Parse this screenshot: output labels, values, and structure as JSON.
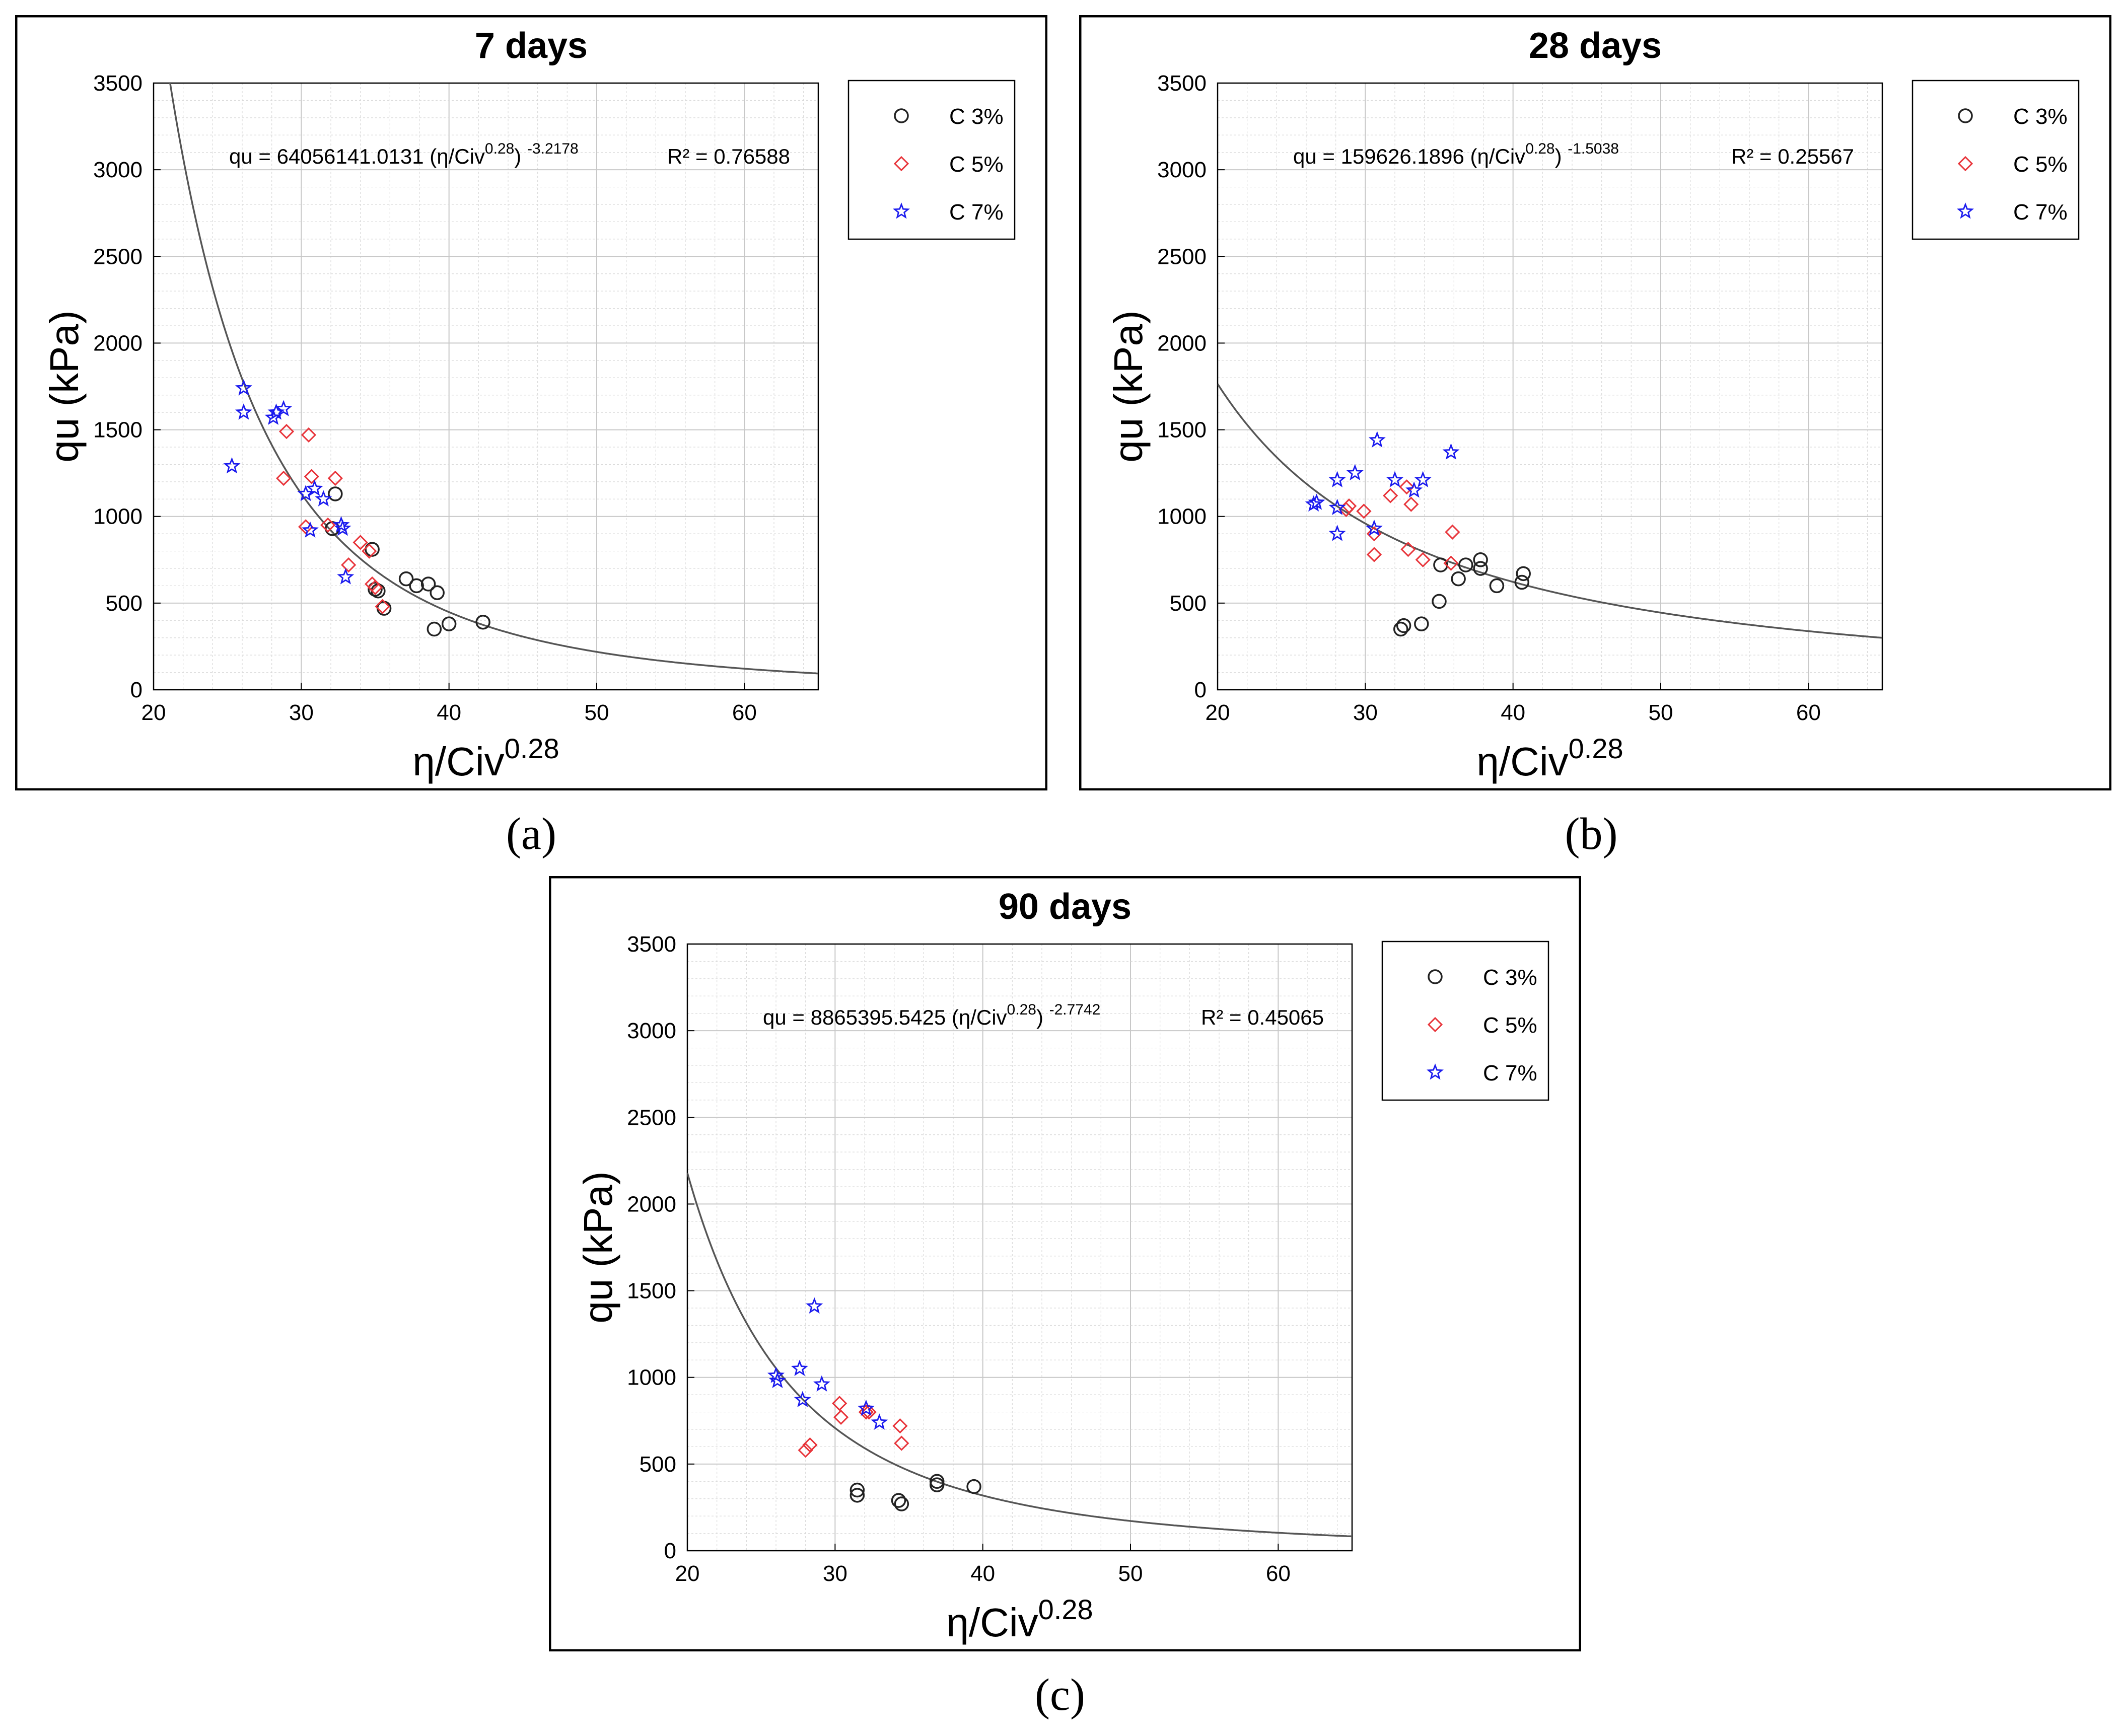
{
  "colors": {
    "c3": "#222222",
    "c5": "#e8343a",
    "c7": "#1a1aee",
    "fit": "#555555",
    "grid": "#d9d9d9",
    "frame": "#000000"
  },
  "chart_data": [
    {
      "type": "scatter",
      "title": "7 days",
      "caption": "(a)",
      "xlabel_base": "η/Civ",
      "xlabel_exp": "0.28",
      "ylabel": "qu (kPa)",
      "xlim": [
        20,
        65
      ],
      "ylim": [
        0,
        3500
      ],
      "xticks": [
        20,
        30,
        40,
        50,
        60
      ],
      "yticks": [
        0,
        500,
        1000,
        1500,
        2000,
        2500,
        3000,
        3500
      ],
      "equation": {
        "prefix": "qu = 64056141.0131 (η/Civ",
        "exp_inner": "0.28",
        "close": ")",
        "exp_outer": "-3.2178",
        "r2_label": "R² =",
        "r2_value": "0.76588"
      },
      "fit": {
        "a": 64056141.0131,
        "b": -3.2178
      },
      "series": [
        {
          "name": "C 3%",
          "marker": "circle",
          "points": [
            [
              32.1,
              930
            ],
            [
              32.3,
              1130
            ],
            [
              34.8,
              810
            ],
            [
              35.0,
              580
            ],
            [
              35.2,
              570
            ],
            [
              35.6,
              470
            ],
            [
              37.1,
              640
            ],
            [
              37.8,
              600
            ],
            [
              38.6,
              610
            ],
            [
              39.0,
              350
            ],
            [
              39.2,
              560
            ],
            [
              40.0,
              380
            ],
            [
              42.3,
              390
            ]
          ]
        },
        {
          "name": "C 5%",
          "marker": "diamond",
          "points": [
            [
              28.8,
              1220
            ],
            [
              29.0,
              1490
            ],
            [
              30.3,
              940
            ],
            [
              30.5,
              1470
            ],
            [
              30.7,
              1230
            ],
            [
              31.8,
              950
            ],
            [
              32.3,
              1220
            ],
            [
              33.2,
              720
            ],
            [
              34.0,
              850
            ],
            [
              34.6,
              800
            ],
            [
              34.8,
              610
            ],
            [
              35.0,
              590
            ],
            [
              35.5,
              480
            ]
          ]
        },
        {
          "name": "C 7%",
          "marker": "star",
          "points": [
            [
              25.3,
              1290
            ],
            [
              26.1,
              1740
            ],
            [
              26.1,
              1600
            ],
            [
              28.1,
              1570
            ],
            [
              28.3,
              1600
            ],
            [
              28.8,
              1620
            ],
            [
              30.3,
              1130
            ],
            [
              30.6,
              920
            ],
            [
              30.9,
              1160
            ],
            [
              31.5,
              1100
            ],
            [
              32.7,
              950
            ],
            [
              32.8,
              930
            ],
            [
              33.0,
              650
            ]
          ]
        }
      ]
    },
    {
      "type": "scatter",
      "title": "28 days",
      "caption": "(b)",
      "xlabel_base": "η/Civ",
      "xlabel_exp": "0.28",
      "ylabel": "qu (kPa)",
      "xlim": [
        20,
        65
      ],
      "ylim": [
        0,
        3500
      ],
      "xticks": [
        20,
        30,
        40,
        50,
        60
      ],
      "yticks": [
        0,
        500,
        1000,
        1500,
        2000,
        2500,
        3000,
        3500
      ],
      "equation": {
        "prefix": "qu = 159626.1896 (η/Civ",
        "exp_inner": "0.28",
        "close": ")",
        "exp_outer": "-1.5038",
        "r2_label": "R² =",
        "r2_value": "0.25567"
      },
      "fit": {
        "a": 159626.1896,
        "b": -1.5038
      },
      "series": [
        {
          "name": "C 3%",
          "marker": "circle",
          "points": [
            [
              32.4,
              350
            ],
            [
              32.6,
              370
            ],
            [
              33.8,
              380
            ],
            [
              35.0,
              510
            ],
            [
              35.1,
              720
            ],
            [
              36.3,
              640
            ],
            [
              36.8,
              720
            ],
            [
              37.8,
              750
            ],
            [
              37.8,
              700
            ],
            [
              38.9,
              600
            ],
            [
              40.6,
              620
            ],
            [
              40.7,
              670
            ]
          ]
        },
        {
          "name": "C 5%",
          "marker": "diamond",
          "points": [
            [
              28.7,
              1040
            ],
            [
              28.9,
              1060
            ],
            [
              29.9,
              1030
            ],
            [
              30.6,
              900
            ],
            [
              30.6,
              780
            ],
            [
              31.7,
              1120
            ],
            [
              32.8,
              1170
            ],
            [
              32.9,
              810
            ],
            [
              33.1,
              1070
            ],
            [
              33.9,
              750
            ],
            [
              35.8,
              730
            ],
            [
              35.9,
              910
            ]
          ]
        },
        {
          "name": "C 7%",
          "marker": "star",
          "points": [
            [
              26.5,
              1070
            ],
            [
              26.7,
              1080
            ],
            [
              28.1,
              1210
            ],
            [
              28.1,
              1050
            ],
            [
              28.1,
              900
            ],
            [
              29.3,
              1250
            ],
            [
              30.6,
              930
            ],
            [
              30.8,
              1440
            ],
            [
              32.0,
              1210
            ],
            [
              33.3,
              1150
            ],
            [
              33.9,
              1210
            ],
            [
              35.8,
              1370
            ]
          ]
        }
      ]
    },
    {
      "type": "scatter",
      "title": "90 days",
      "caption": "(c)",
      "xlabel_base": "η/Civ",
      "xlabel_exp": "0.28",
      "ylabel": "qu (kPa)",
      "xlim": [
        20,
        65
      ],
      "ylim": [
        0,
        3500
      ],
      "xticks": [
        20,
        30,
        40,
        50,
        60
      ],
      "yticks": [
        0,
        500,
        1000,
        1500,
        2000,
        2500,
        3000,
        3500
      ],
      "equation": {
        "prefix": "qu = 8865395.5425 (η/Civ",
        "exp_inner": "0.28",
        "close": ")",
        "exp_outer": "-2.7742",
        "r2_label": "R² =",
        "r2_value": "0.45065"
      },
      "fit": {
        "a": 8865395.5425,
        "b": -2.7742
      },
      "series": [
        {
          "name": "C 3%",
          "marker": "circle",
          "points": [
            [
              31.5,
              350
            ],
            [
              31.5,
              320
            ],
            [
              34.3,
              290
            ],
            [
              34.5,
              270
            ],
            [
              36.9,
              400
            ],
            [
              36.9,
              380
            ],
            [
              39.4,
              370
            ]
          ]
        },
        {
          "name": "C 5%",
          "marker": "diamond",
          "points": [
            [
              28.0,
              580
            ],
            [
              28.3,
              610
            ],
            [
              30.3,
              850
            ],
            [
              30.4,
              770
            ],
            [
              32.1,
              800
            ],
            [
              32.3,
              800
            ],
            [
              34.4,
              720
            ],
            [
              34.5,
              620
            ]
          ]
        },
        {
          "name": "C 7%",
          "marker": "star",
          "points": [
            [
              26.0,
              1010
            ],
            [
              26.1,
              980
            ],
            [
              27.6,
              1050
            ],
            [
              27.8,
              870
            ],
            [
              28.6,
              1410
            ],
            [
              29.1,
              960
            ],
            [
              32.1,
              820
            ],
            [
              33.0,
              740
            ]
          ]
        }
      ]
    }
  ]
}
